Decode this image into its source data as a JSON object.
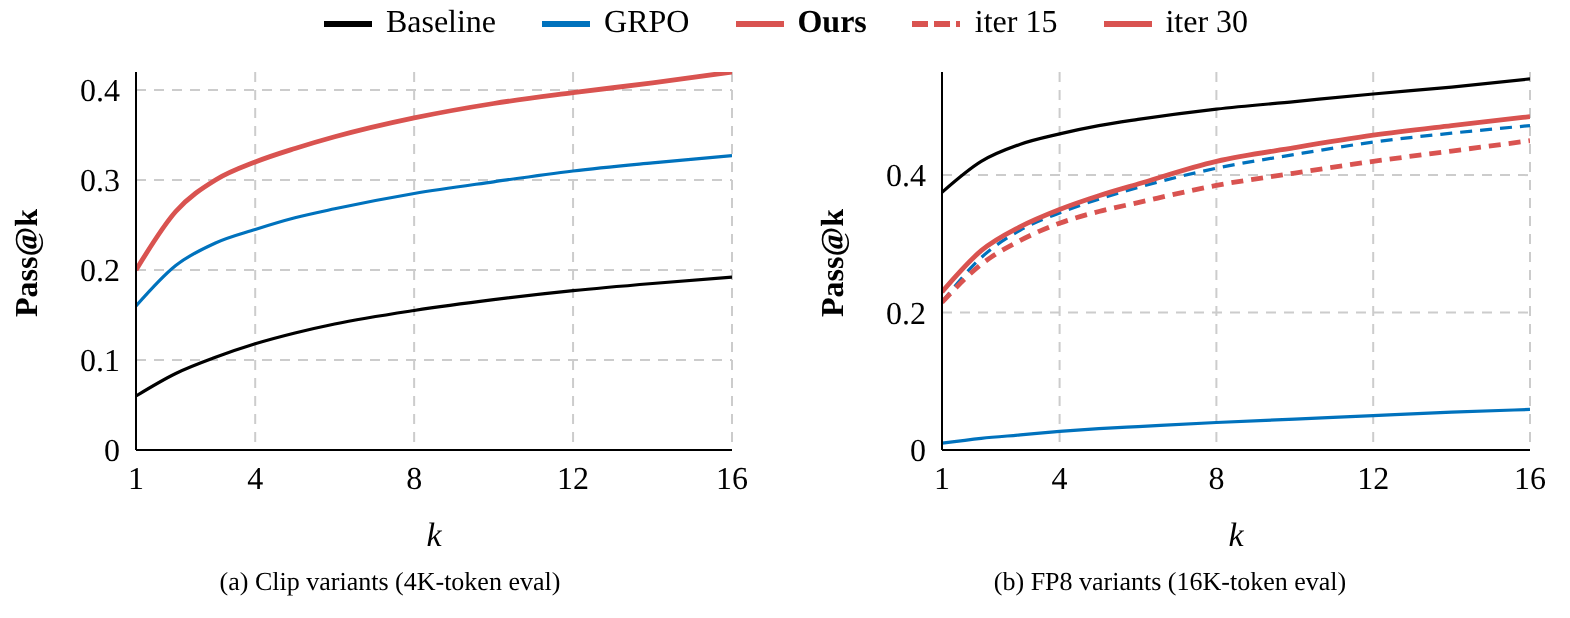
{
  "chart_data": [
    {
      "type": "line",
      "title": "(a) Clip variants (4K-token eval)",
      "xlabel": "k",
      "ylabel": "Pass@k",
      "x": [
        1,
        2,
        3,
        4,
        5,
        6,
        8,
        10,
        12,
        14,
        16
      ],
      "xlim": [
        1,
        16
      ],
      "xticks": [
        1,
        4,
        8,
        12,
        16
      ],
      "ylim": [
        0,
        0.42
      ],
      "yticks": [
        0,
        0.1,
        0.2,
        0.3,
        0.4
      ],
      "grid": true,
      "legend": "top",
      "marker": "none",
      "line_style": "solid",
      "series": [
        {
          "name": "Baseline",
          "color": "#000000",
          "values": [
            0.06,
            0.085,
            0.103,
            0.118,
            0.13,
            0.14,
            0.155,
            0.167,
            0.177,
            0.185,
            0.192
          ]
        },
        {
          "name": "GRPO",
          "color": "#0072bd",
          "values": [
            0.16,
            0.205,
            0.23,
            0.245,
            0.258,
            0.268,
            0.285,
            0.298,
            0.31,
            0.319,
            0.327
          ]
        },
        {
          "name": "Ours",
          "color": "#d95350",
          "values": [
            0.2,
            0.265,
            0.3,
            0.32,
            0.335,
            0.348,
            0.369,
            0.385,
            0.397,
            0.408,
            0.42
          ]
        }
      ]
    },
    {
      "type": "line",
      "title": "(b) FP8 variants (16K-token eval)",
      "xlabel": "k",
      "ylabel": "Pass@k",
      "x": [
        1,
        2,
        3,
        4,
        5,
        6,
        8,
        10,
        12,
        14,
        16
      ],
      "xlim": [
        1,
        16
      ],
      "xticks": [
        1,
        4,
        8,
        12,
        16
      ],
      "ylim": [
        0,
        0.55
      ],
      "yticks": [
        0,
        0.2,
        0.4
      ],
      "grid": true,
      "legend": "top",
      "marker": "none",
      "series": [
        {
          "color": "#000000",
          "line_style": "solid",
          "values": [
            0.375,
            0.42,
            0.445,
            0.46,
            0.472,
            0.481,
            0.496,
            0.507,
            0.518,
            0.528,
            0.54
          ]
        },
        {
          "color": "#0072bd",
          "line_style": "solid",
          "values": [
            0.01,
            0.017,
            0.022,
            0.027,
            0.031,
            0.034,
            0.04,
            0.045,
            0.05,
            0.055,
            0.059
          ]
        },
        {
          "color": "#0072bd",
          "line_style": "dashed",
          "values": [
            0.215,
            0.28,
            0.32,
            0.345,
            0.365,
            0.382,
            0.41,
            0.43,
            0.448,
            0.461,
            0.472
          ]
        },
        {
          "name": "iter 15",
          "color": "#d95350",
          "line_style": "dashed",
          "values": [
            0.215,
            0.27,
            0.305,
            0.33,
            0.347,
            0.36,
            0.385,
            0.403,
            0.42,
            0.435,
            0.45
          ]
        },
        {
          "name": "iter 30",
          "color": "#d95350",
          "line_style": "solid",
          "values": [
            0.23,
            0.29,
            0.325,
            0.35,
            0.37,
            0.387,
            0.42,
            0.44,
            0.458,
            0.472,
            0.485
          ]
        }
      ]
    }
  ]
}
